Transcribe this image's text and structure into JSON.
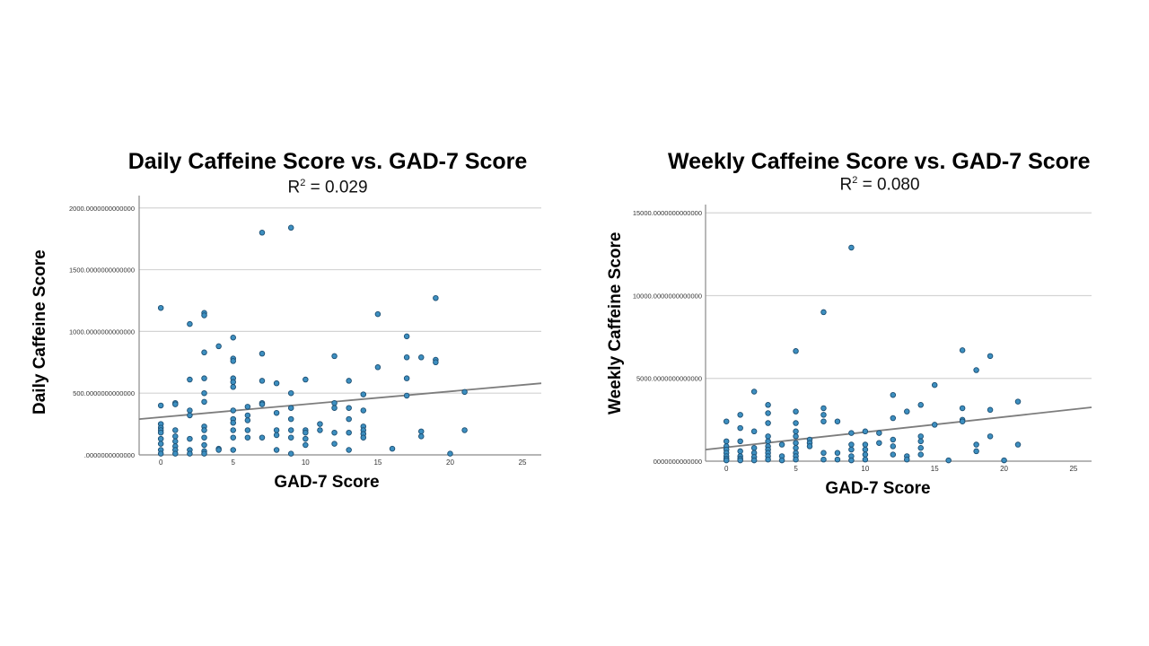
{
  "chart_data": [
    {
      "type": "scatter",
      "title": "Daily Caffeine Score vs. GAD-7 Score",
      "subtitle_prefix": "R",
      "subtitle_sup": "2",
      "subtitle_suffix": " = 0.029",
      "xlabel": "GAD-7 Score",
      "ylabel": "Daily Caffeine Score",
      "xlim": [
        -1.5,
        26.3
      ],
      "ylim": [
        0,
        2100
      ],
      "xticks": [
        "0",
        "5",
        "10",
        "15",
        "20",
        "25"
      ],
      "xtick_values": [
        0,
        5,
        10,
        15,
        20,
        25
      ],
      "yticks": [
        ".0000000000000",
        "500.0000000000000",
        "1000.0000000000000",
        "1500.0000000000000",
        "2000.0000000000000"
      ],
      "ytick_values": [
        0,
        500,
        1000,
        1500,
        2000
      ],
      "grid": "horizontal",
      "fit_line": {
        "x": [
          -1.5,
          26.3
        ],
        "y": [
          290,
          580
        ]
      },
      "points": [
        {
          "x": 0,
          "y": 1190
        },
        {
          "x": 0,
          "y": 400
        },
        {
          "x": 0,
          "y": 250
        },
        {
          "x": 0,
          "y": 220
        },
        {
          "x": 0,
          "y": 200
        },
        {
          "x": 0,
          "y": 180
        },
        {
          "x": 0,
          "y": 130
        },
        {
          "x": 0,
          "y": 90
        },
        {
          "x": 0,
          "y": 40
        },
        {
          "x": 0,
          "y": 10
        },
        {
          "x": 1,
          "y": 420
        },
        {
          "x": 1,
          "y": 410
        },
        {
          "x": 1,
          "y": 200
        },
        {
          "x": 1,
          "y": 150
        },
        {
          "x": 1,
          "y": 110
        },
        {
          "x": 1,
          "y": 70
        },
        {
          "x": 1,
          "y": 40
        },
        {
          "x": 1,
          "y": 10
        },
        {
          "x": 2,
          "y": 1060
        },
        {
          "x": 2,
          "y": 610
        },
        {
          "x": 2,
          "y": 360
        },
        {
          "x": 2,
          "y": 320
        },
        {
          "x": 2,
          "y": 130
        },
        {
          "x": 2,
          "y": 40
        },
        {
          "x": 2,
          "y": 10
        },
        {
          "x": 3,
          "y": 1150
        },
        {
          "x": 3,
          "y": 1130
        },
        {
          "x": 3,
          "y": 830
        },
        {
          "x": 3,
          "y": 620
        },
        {
          "x": 3,
          "y": 500
        },
        {
          "x": 3,
          "y": 430
        },
        {
          "x": 3,
          "y": 230
        },
        {
          "x": 3,
          "y": 200
        },
        {
          "x": 3,
          "y": 140
        },
        {
          "x": 3,
          "y": 80
        },
        {
          "x": 3,
          "y": 30
        },
        {
          "x": 3,
          "y": 10
        },
        {
          "x": 4,
          "y": 880
        },
        {
          "x": 4,
          "y": 50
        },
        {
          "x": 4,
          "y": 40
        },
        {
          "x": 5,
          "y": 950
        },
        {
          "x": 5,
          "y": 780
        },
        {
          "x": 5,
          "y": 760
        },
        {
          "x": 5,
          "y": 620
        },
        {
          "x": 5,
          "y": 590
        },
        {
          "x": 5,
          "y": 550
        },
        {
          "x": 5,
          "y": 360
        },
        {
          "x": 5,
          "y": 290
        },
        {
          "x": 5,
          "y": 260
        },
        {
          "x": 5,
          "y": 200
        },
        {
          "x": 5,
          "y": 140
        },
        {
          "x": 5,
          "y": 40
        },
        {
          "x": 6,
          "y": 390
        },
        {
          "x": 6,
          "y": 320
        },
        {
          "x": 6,
          "y": 280
        },
        {
          "x": 6,
          "y": 200
        },
        {
          "x": 6,
          "y": 140
        },
        {
          "x": 7,
          "y": 1800
        },
        {
          "x": 7,
          "y": 820
        },
        {
          "x": 7,
          "y": 600
        },
        {
          "x": 7,
          "y": 420
        },
        {
          "x": 7,
          "y": 410
        },
        {
          "x": 7,
          "y": 140
        },
        {
          "x": 8,
          "y": 580
        },
        {
          "x": 8,
          "y": 340
        },
        {
          "x": 8,
          "y": 200
        },
        {
          "x": 8,
          "y": 160
        },
        {
          "x": 8,
          "y": 40
        },
        {
          "x": 9,
          "y": 1840
        },
        {
          "x": 9,
          "y": 500
        },
        {
          "x": 9,
          "y": 380
        },
        {
          "x": 9,
          "y": 290
        },
        {
          "x": 9,
          "y": 200
        },
        {
          "x": 9,
          "y": 140
        },
        {
          "x": 9,
          "y": 10
        },
        {
          "x": 10,
          "y": 610
        },
        {
          "x": 10,
          "y": 200
        },
        {
          "x": 10,
          "y": 180
        },
        {
          "x": 10,
          "y": 130
        },
        {
          "x": 10,
          "y": 80
        },
        {
          "x": 11,
          "y": 250
        },
        {
          "x": 11,
          "y": 200
        },
        {
          "x": 12,
          "y": 800
        },
        {
          "x": 12,
          "y": 420
        },
        {
          "x": 12,
          "y": 380
        },
        {
          "x": 12,
          "y": 180
        },
        {
          "x": 12,
          "y": 90
        },
        {
          "x": 13,
          "y": 600
        },
        {
          "x": 13,
          "y": 380
        },
        {
          "x": 13,
          "y": 290
        },
        {
          "x": 13,
          "y": 180
        },
        {
          "x": 13,
          "y": 40
        },
        {
          "x": 14,
          "y": 490
        },
        {
          "x": 14,
          "y": 360
        },
        {
          "x": 14,
          "y": 230
        },
        {
          "x": 14,
          "y": 200
        },
        {
          "x": 14,
          "y": 170
        },
        {
          "x": 14,
          "y": 140
        },
        {
          "x": 15,
          "y": 1140
        },
        {
          "x": 15,
          "y": 710
        },
        {
          "x": 16,
          "y": 50
        },
        {
          "x": 17,
          "y": 960
        },
        {
          "x": 17,
          "y": 790
        },
        {
          "x": 17,
          "y": 620
        },
        {
          "x": 17,
          "y": 480
        },
        {
          "x": 18,
          "y": 790
        },
        {
          "x": 18,
          "y": 190
        },
        {
          "x": 18,
          "y": 150
        },
        {
          "x": 19,
          "y": 1270
        },
        {
          "x": 19,
          "y": 770
        },
        {
          "x": 19,
          "y": 750
        },
        {
          "x": 20,
          "y": 10
        },
        {
          "x": 21,
          "y": 510
        },
        {
          "x": 21,
          "y": 200
        }
      ]
    },
    {
      "type": "scatter",
      "title": "Weekly Caffeine Score vs. GAD-7 Score",
      "subtitle_prefix": "R",
      "subtitle_sup": "2",
      "subtitle_suffix": " = 0.080",
      "xlabel": "GAD-7 Score",
      "ylabel": "Weekly Caffeine Score",
      "xlim": [
        -1.5,
        26.3
      ],
      "ylim": [
        0,
        15500
      ],
      "xticks": [
        "0",
        "5",
        "10",
        "15",
        "20",
        "25"
      ],
      "xtick_values": [
        0,
        5,
        10,
        15,
        20,
        25
      ],
      "yticks": [
        "0000000000000",
        "5000.0000000000000",
        "10000.0000000000000",
        "15000.0000000000000"
      ],
      "ytick_values": [
        0,
        5000,
        10000,
        15000
      ],
      "grid": "horizontal",
      "fit_line": {
        "x": [
          -1.5,
          26.3
        ],
        "y": [
          700,
          3250
        ]
      },
      "points": [
        {
          "x": 0,
          "y": 2400
        },
        {
          "x": 0,
          "y": 1200
        },
        {
          "x": 0,
          "y": 900
        },
        {
          "x": 0,
          "y": 700
        },
        {
          "x": 0,
          "y": 500
        },
        {
          "x": 0,
          "y": 300
        },
        {
          "x": 0,
          "y": 150
        },
        {
          "x": 0,
          "y": 50
        },
        {
          "x": 1,
          "y": 2800
        },
        {
          "x": 1,
          "y": 2000
        },
        {
          "x": 1,
          "y": 1200
        },
        {
          "x": 1,
          "y": 600
        },
        {
          "x": 1,
          "y": 300
        },
        {
          "x": 1,
          "y": 150
        },
        {
          "x": 1,
          "y": 50
        },
        {
          "x": 2,
          "y": 4200
        },
        {
          "x": 2,
          "y": 1800
        },
        {
          "x": 2,
          "y": 800
        },
        {
          "x": 2,
          "y": 500
        },
        {
          "x": 2,
          "y": 250
        },
        {
          "x": 2,
          "y": 50
        },
        {
          "x": 3,
          "y": 3400
        },
        {
          "x": 3,
          "y": 2900
        },
        {
          "x": 3,
          "y": 2300
        },
        {
          "x": 3,
          "y": 1500
        },
        {
          "x": 3,
          "y": 1200
        },
        {
          "x": 3,
          "y": 900
        },
        {
          "x": 3,
          "y": 700
        },
        {
          "x": 3,
          "y": 500
        },
        {
          "x": 3,
          "y": 300
        },
        {
          "x": 3,
          "y": 100
        },
        {
          "x": 4,
          "y": 1000
        },
        {
          "x": 4,
          "y": 300
        },
        {
          "x": 4,
          "y": 50
        },
        {
          "x": 5,
          "y": 6650
        },
        {
          "x": 5,
          "y": 3000
        },
        {
          "x": 5,
          "y": 2300
        },
        {
          "x": 5,
          "y": 1800
        },
        {
          "x": 5,
          "y": 1500
        },
        {
          "x": 5,
          "y": 1100
        },
        {
          "x": 5,
          "y": 800
        },
        {
          "x": 5,
          "y": 500
        },
        {
          "x": 5,
          "y": 300
        },
        {
          "x": 5,
          "y": 100
        },
        {
          "x": 6,
          "y": 1300
        },
        {
          "x": 6,
          "y": 1100
        },
        {
          "x": 6,
          "y": 900
        },
        {
          "x": 7,
          "y": 9000
        },
        {
          "x": 7,
          "y": 3200
        },
        {
          "x": 7,
          "y": 2800
        },
        {
          "x": 7,
          "y": 2400
        },
        {
          "x": 7,
          "y": 500
        },
        {
          "x": 7,
          "y": 100
        },
        {
          "x": 8,
          "y": 2400
        },
        {
          "x": 8,
          "y": 500
        },
        {
          "x": 8,
          "y": 100
        },
        {
          "x": 9,
          "y": 12900
        },
        {
          "x": 9,
          "y": 1700
        },
        {
          "x": 9,
          "y": 1000
        },
        {
          "x": 9,
          "y": 700
        },
        {
          "x": 9,
          "y": 300
        },
        {
          "x": 9,
          "y": 50
        },
        {
          "x": 10,
          "y": 1800
        },
        {
          "x": 10,
          "y": 1000
        },
        {
          "x": 10,
          "y": 700
        },
        {
          "x": 10,
          "y": 400
        },
        {
          "x": 10,
          "y": 100
        },
        {
          "x": 11,
          "y": 1700
        },
        {
          "x": 11,
          "y": 1100
        },
        {
          "x": 12,
          "y": 4000
        },
        {
          "x": 12,
          "y": 2600
        },
        {
          "x": 12,
          "y": 1300
        },
        {
          "x": 12,
          "y": 900
        },
        {
          "x": 12,
          "y": 400
        },
        {
          "x": 13,
          "y": 3000
        },
        {
          "x": 13,
          "y": 300
        },
        {
          "x": 13,
          "y": 100
        },
        {
          "x": 14,
          "y": 3400
        },
        {
          "x": 14,
          "y": 1500
        },
        {
          "x": 14,
          "y": 1200
        },
        {
          "x": 14,
          "y": 800
        },
        {
          "x": 14,
          "y": 400
        },
        {
          "x": 15,
          "y": 4600
        },
        {
          "x": 15,
          "y": 2200
        },
        {
          "x": 16,
          "y": 50
        },
        {
          "x": 17,
          "y": 6700
        },
        {
          "x": 17,
          "y": 3200
        },
        {
          "x": 17,
          "y": 2500
        },
        {
          "x": 17,
          "y": 2400
        },
        {
          "x": 18,
          "y": 5500
        },
        {
          "x": 18,
          "y": 1000
        },
        {
          "x": 18,
          "y": 600
        },
        {
          "x": 19,
          "y": 6350
        },
        {
          "x": 19,
          "y": 3100
        },
        {
          "x": 19,
          "y": 1500
        },
        {
          "x": 20,
          "y": 50
        },
        {
          "x": 21,
          "y": 3600
        },
        {
          "x": 21,
          "y": 1000
        }
      ]
    }
  ],
  "colors": {
    "point_fill": "#3d8fc0",
    "point_stroke": "#1d4f73",
    "fit_line": "#7d7d7d",
    "grid": "#d4d4d4",
    "axis": "#8a8a8a"
  }
}
